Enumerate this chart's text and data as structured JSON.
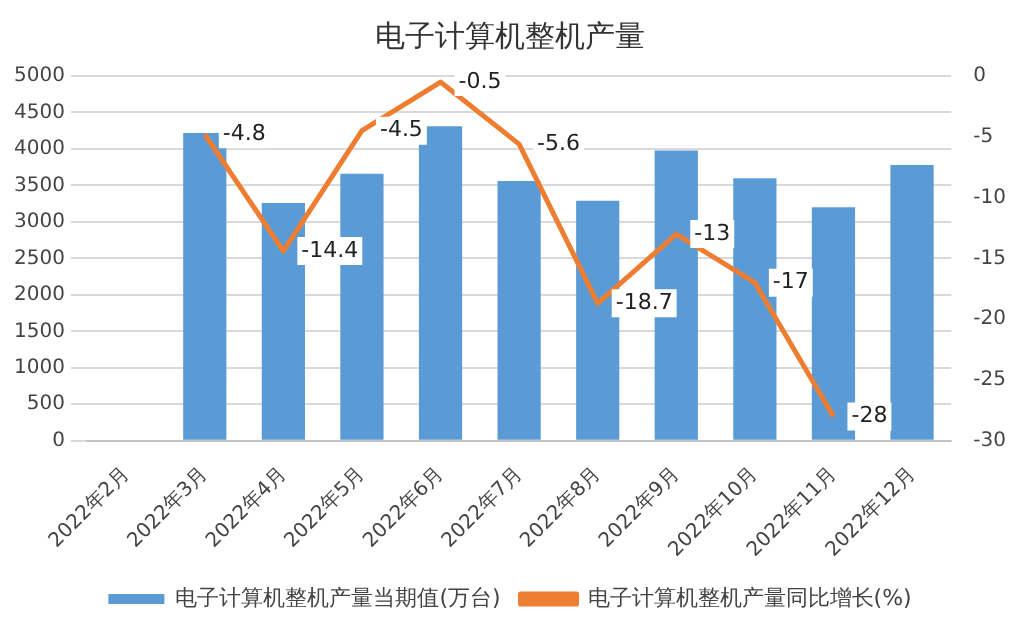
{
  "chart_data": {
    "type": "bar",
    "title": "电子计算机整机产量",
    "categories": [
      "2022年2月",
      "2022年3月",
      "2022年4月",
      "2022年5月",
      "2022年6月",
      "2022年7月",
      "2022年8月",
      "2022年9月",
      "2022年10月",
      "2022年11月",
      "2022年12月"
    ],
    "series": [
      {
        "name": "电子计算机整机产量当期值(万台)",
        "color": "#5b9bd5",
        "values": [
          null,
          4220,
          3260,
          3660,
          4310,
          3560,
          3290,
          3980,
          3600,
          3200,
          3780
        ]
      },
      {
        "name": "电子计算机整机产量同比增长(%)",
        "type": "line",
        "axis": "y2",
        "color": "#ed7d31",
        "values": [
          null,
          -4.8,
          -14.4,
          -4.5,
          -0.5,
          -5.6,
          -18.7,
          -13,
          -17,
          -28,
          null
        ],
        "value_labels": [
          null,
          "-4.8",
          "-14.4",
          "-4.5",
          "-0.5",
          "-5.6",
          "-18.7",
          "-13",
          "-17",
          "-28",
          null
        ]
      }
    ],
    "ylim": [
      0,
      5000
    ],
    "yticks": [
      0,
      500,
      1000,
      1500,
      2000,
      2500,
      3000,
      3500,
      4000,
      4500,
      5000
    ],
    "y2lim": [
      -30,
      0
    ],
    "y2ticks": [
      -30,
      -25,
      -20,
      -15,
      -10,
      -5,
      0
    ],
    "grid": "y",
    "legend": "bottom",
    "marker": "none",
    "line_style": "solid"
  }
}
